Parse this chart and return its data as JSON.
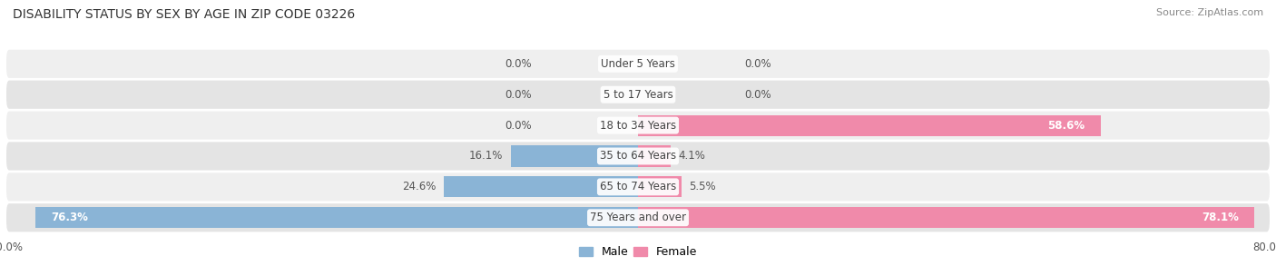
{
  "title": "DISABILITY STATUS BY SEX BY AGE IN ZIP CODE 03226",
  "source": "Source: ZipAtlas.com",
  "categories": [
    "Under 5 Years",
    "5 to 17 Years",
    "18 to 34 Years",
    "35 to 64 Years",
    "65 to 74 Years",
    "75 Years and over"
  ],
  "male_values": [
    0.0,
    0.0,
    0.0,
    16.1,
    24.6,
    76.3
  ],
  "female_values": [
    0.0,
    0.0,
    58.6,
    4.1,
    5.5,
    78.1
  ],
  "male_color": "#8ab4d6",
  "female_color": "#f08aaa",
  "row_bg_even": "#efefef",
  "row_bg_odd": "#e4e4e4",
  "max_val": 80.0,
  "title_fontsize": 10,
  "source_fontsize": 8,
  "label_fontsize": 8.5,
  "category_fontsize": 8.5,
  "legend_fontsize": 9,
  "axis_label_fontsize": 8.5
}
